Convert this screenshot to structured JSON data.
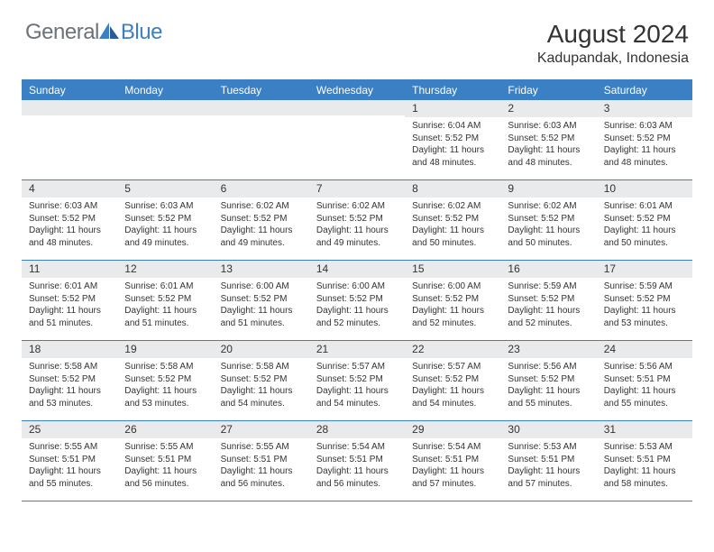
{
  "logo": {
    "general": "General",
    "blue": "Blue"
  },
  "title": "August 2024",
  "location": "Kadupandak, Indonesia",
  "colors": {
    "header_bg": "#3b7fc4",
    "header_text": "#ffffff",
    "daynum_bg": "#e9eaeb",
    "border": "#3b7fc4",
    "text": "#333333",
    "logo_gray": "#6b7278",
    "logo_blue": "#3b7fc4",
    "background": "#ffffff"
  },
  "dayNames": [
    "Sunday",
    "Monday",
    "Tuesday",
    "Wednesday",
    "Thursday",
    "Friday",
    "Saturday"
  ],
  "weeks": [
    [
      {
        "empty": true
      },
      {
        "empty": true
      },
      {
        "empty": true
      },
      {
        "empty": true
      },
      {
        "n": "1",
        "sr": "Sunrise: 6:04 AM",
        "ss": "Sunset: 5:52 PM",
        "d1": "Daylight: 11 hours",
        "d2": "and 48 minutes."
      },
      {
        "n": "2",
        "sr": "Sunrise: 6:03 AM",
        "ss": "Sunset: 5:52 PM",
        "d1": "Daylight: 11 hours",
        "d2": "and 48 minutes."
      },
      {
        "n": "3",
        "sr": "Sunrise: 6:03 AM",
        "ss": "Sunset: 5:52 PM",
        "d1": "Daylight: 11 hours",
        "d2": "and 48 minutes."
      }
    ],
    [
      {
        "n": "4",
        "sr": "Sunrise: 6:03 AM",
        "ss": "Sunset: 5:52 PM",
        "d1": "Daylight: 11 hours",
        "d2": "and 48 minutes."
      },
      {
        "n": "5",
        "sr": "Sunrise: 6:03 AM",
        "ss": "Sunset: 5:52 PM",
        "d1": "Daylight: 11 hours",
        "d2": "and 49 minutes."
      },
      {
        "n": "6",
        "sr": "Sunrise: 6:02 AM",
        "ss": "Sunset: 5:52 PM",
        "d1": "Daylight: 11 hours",
        "d2": "and 49 minutes."
      },
      {
        "n": "7",
        "sr": "Sunrise: 6:02 AM",
        "ss": "Sunset: 5:52 PM",
        "d1": "Daylight: 11 hours",
        "d2": "and 49 minutes."
      },
      {
        "n": "8",
        "sr": "Sunrise: 6:02 AM",
        "ss": "Sunset: 5:52 PM",
        "d1": "Daylight: 11 hours",
        "d2": "and 50 minutes."
      },
      {
        "n": "9",
        "sr": "Sunrise: 6:02 AM",
        "ss": "Sunset: 5:52 PM",
        "d1": "Daylight: 11 hours",
        "d2": "and 50 minutes."
      },
      {
        "n": "10",
        "sr": "Sunrise: 6:01 AM",
        "ss": "Sunset: 5:52 PM",
        "d1": "Daylight: 11 hours",
        "d2": "and 50 minutes."
      }
    ],
    [
      {
        "n": "11",
        "sr": "Sunrise: 6:01 AM",
        "ss": "Sunset: 5:52 PM",
        "d1": "Daylight: 11 hours",
        "d2": "and 51 minutes."
      },
      {
        "n": "12",
        "sr": "Sunrise: 6:01 AM",
        "ss": "Sunset: 5:52 PM",
        "d1": "Daylight: 11 hours",
        "d2": "and 51 minutes."
      },
      {
        "n": "13",
        "sr": "Sunrise: 6:00 AM",
        "ss": "Sunset: 5:52 PM",
        "d1": "Daylight: 11 hours",
        "d2": "and 51 minutes."
      },
      {
        "n": "14",
        "sr": "Sunrise: 6:00 AM",
        "ss": "Sunset: 5:52 PM",
        "d1": "Daylight: 11 hours",
        "d2": "and 52 minutes."
      },
      {
        "n": "15",
        "sr": "Sunrise: 6:00 AM",
        "ss": "Sunset: 5:52 PM",
        "d1": "Daylight: 11 hours",
        "d2": "and 52 minutes."
      },
      {
        "n": "16",
        "sr": "Sunrise: 5:59 AM",
        "ss": "Sunset: 5:52 PM",
        "d1": "Daylight: 11 hours",
        "d2": "and 52 minutes."
      },
      {
        "n": "17",
        "sr": "Sunrise: 5:59 AM",
        "ss": "Sunset: 5:52 PM",
        "d1": "Daylight: 11 hours",
        "d2": "and 53 minutes."
      }
    ],
    [
      {
        "n": "18",
        "sr": "Sunrise: 5:58 AM",
        "ss": "Sunset: 5:52 PM",
        "d1": "Daylight: 11 hours",
        "d2": "and 53 minutes."
      },
      {
        "n": "19",
        "sr": "Sunrise: 5:58 AM",
        "ss": "Sunset: 5:52 PM",
        "d1": "Daylight: 11 hours",
        "d2": "and 53 minutes."
      },
      {
        "n": "20",
        "sr": "Sunrise: 5:58 AM",
        "ss": "Sunset: 5:52 PM",
        "d1": "Daylight: 11 hours",
        "d2": "and 54 minutes."
      },
      {
        "n": "21",
        "sr": "Sunrise: 5:57 AM",
        "ss": "Sunset: 5:52 PM",
        "d1": "Daylight: 11 hours",
        "d2": "and 54 minutes."
      },
      {
        "n": "22",
        "sr": "Sunrise: 5:57 AM",
        "ss": "Sunset: 5:52 PM",
        "d1": "Daylight: 11 hours",
        "d2": "and 54 minutes."
      },
      {
        "n": "23",
        "sr": "Sunrise: 5:56 AM",
        "ss": "Sunset: 5:52 PM",
        "d1": "Daylight: 11 hours",
        "d2": "and 55 minutes."
      },
      {
        "n": "24",
        "sr": "Sunrise: 5:56 AM",
        "ss": "Sunset: 5:51 PM",
        "d1": "Daylight: 11 hours",
        "d2": "and 55 minutes."
      }
    ],
    [
      {
        "n": "25",
        "sr": "Sunrise: 5:55 AM",
        "ss": "Sunset: 5:51 PM",
        "d1": "Daylight: 11 hours",
        "d2": "and 55 minutes."
      },
      {
        "n": "26",
        "sr": "Sunrise: 5:55 AM",
        "ss": "Sunset: 5:51 PM",
        "d1": "Daylight: 11 hours",
        "d2": "and 56 minutes."
      },
      {
        "n": "27",
        "sr": "Sunrise: 5:55 AM",
        "ss": "Sunset: 5:51 PM",
        "d1": "Daylight: 11 hours",
        "d2": "and 56 minutes."
      },
      {
        "n": "28",
        "sr": "Sunrise: 5:54 AM",
        "ss": "Sunset: 5:51 PM",
        "d1": "Daylight: 11 hours",
        "d2": "and 56 minutes."
      },
      {
        "n": "29",
        "sr": "Sunrise: 5:54 AM",
        "ss": "Sunset: 5:51 PM",
        "d1": "Daylight: 11 hours",
        "d2": "and 57 minutes."
      },
      {
        "n": "30",
        "sr": "Sunrise: 5:53 AM",
        "ss": "Sunset: 5:51 PM",
        "d1": "Daylight: 11 hours",
        "d2": "and 57 minutes."
      },
      {
        "n": "31",
        "sr": "Sunrise: 5:53 AM",
        "ss": "Sunset: 5:51 PM",
        "d1": "Daylight: 11 hours",
        "d2": "and 58 minutes."
      }
    ]
  ]
}
